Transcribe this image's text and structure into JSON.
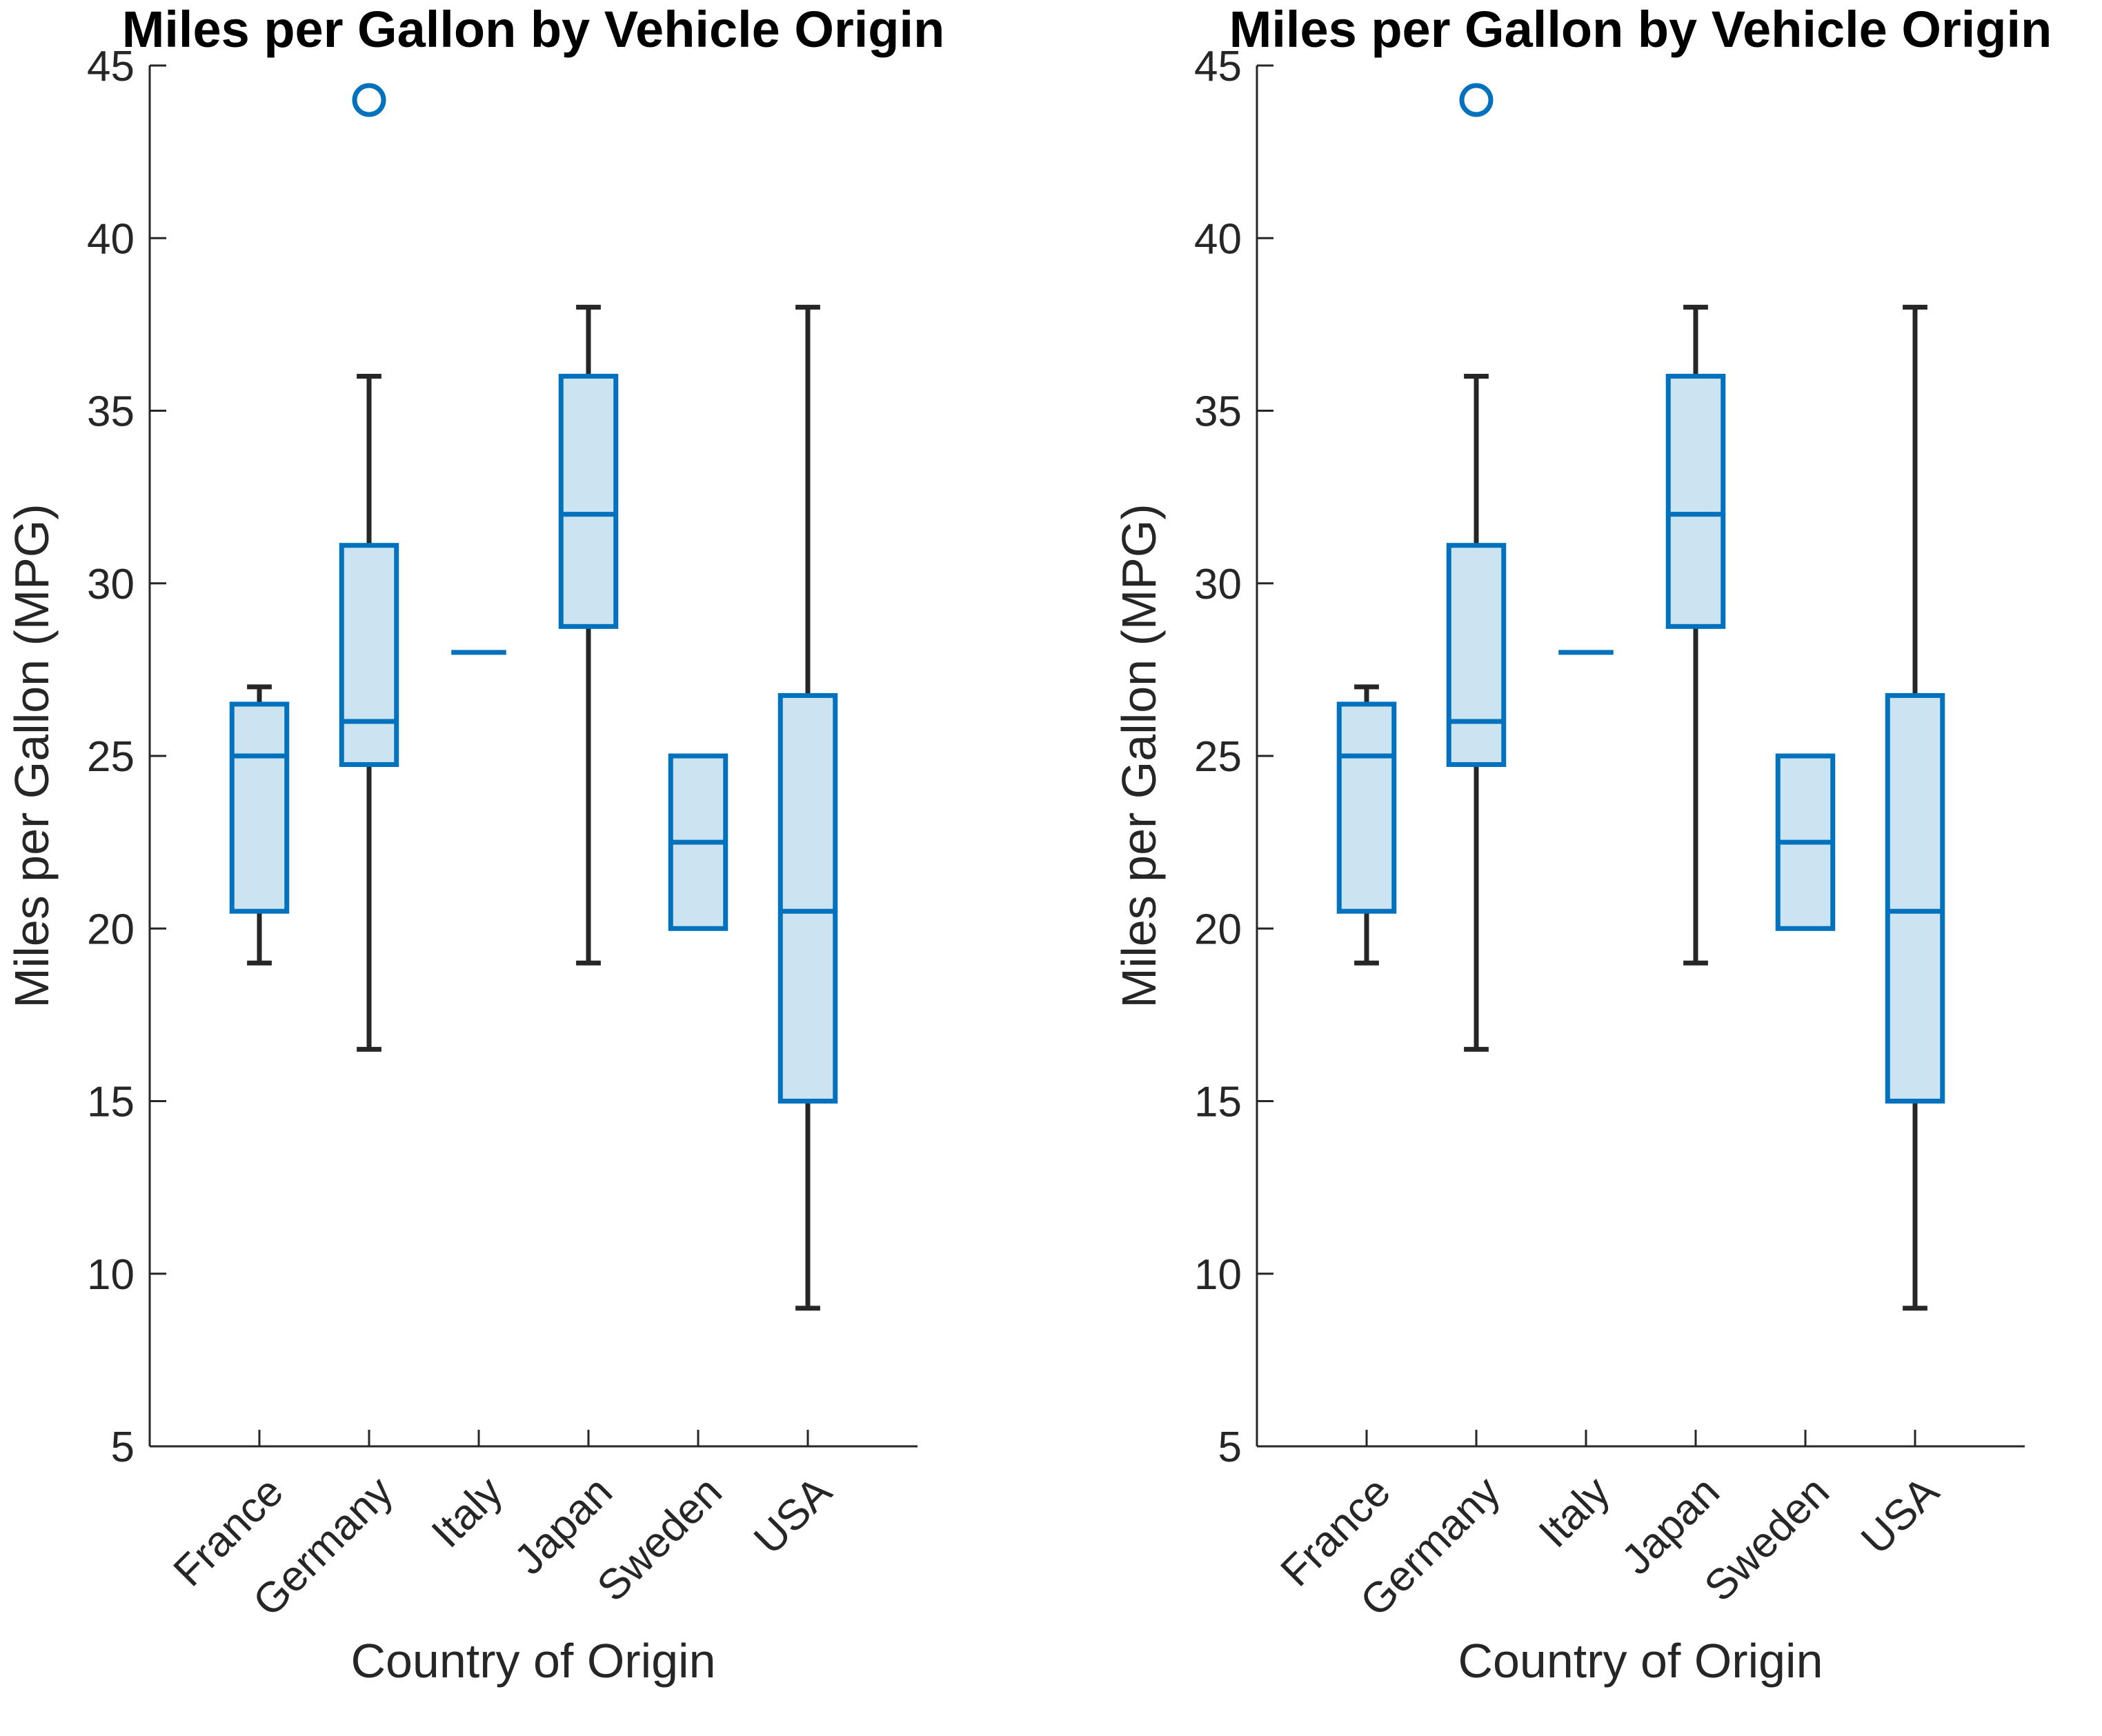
{
  "colors": {
    "box_stroke": "#0072BD",
    "box_fill": "#CCE3F1",
    "whisker": "#262626",
    "axis": "#262626",
    "outlier": "#0072BD"
  },
  "chart_data": [
    {
      "type": "boxplot",
      "title": "Miles per Gallon by Vehicle Origin",
      "xlabel": "Country of Origin",
      "ylabel": "Miles per Gallon (MPG)",
      "ylim": [
        5,
        45
      ],
      "yticks": [
        "5",
        "10",
        "15",
        "20",
        "25",
        "30",
        "35",
        "40",
        "45"
      ],
      "grid": false,
      "categories": [
        "France",
        "Germany",
        "Italy",
        "Japan",
        "Sweden",
        "USA"
      ],
      "boxes": [
        {
          "category": "France",
          "whisker_low": 19,
          "q1": 20.5,
          "median": 25,
          "q3": 26.5,
          "whisker_high": 27,
          "outliers": []
        },
        {
          "category": "Germany",
          "whisker_low": 16.5,
          "q1": 24.75,
          "median": 26,
          "q3": 31.1,
          "whisker_high": 36,
          "outliers": [
            44
          ]
        },
        {
          "category": "Italy",
          "whisker_low": 28,
          "q1": 28,
          "median": 28,
          "q3": 28,
          "whisker_high": 28,
          "outliers": []
        },
        {
          "category": "Japan",
          "whisker_low": 19,
          "q1": 28.75,
          "median": 32,
          "q3": 36,
          "whisker_high": 38,
          "outliers": []
        },
        {
          "category": "Sweden",
          "whisker_low": 20,
          "q1": 20,
          "median": 22.5,
          "q3": 25,
          "whisker_high": 25,
          "outliers": []
        },
        {
          "category": "USA",
          "whisker_low": 9,
          "q1": 15,
          "median": 20.5,
          "q3": 26.75,
          "whisker_high": 38,
          "outliers": []
        }
      ]
    },
    {
      "type": "boxplot",
      "title": "Miles per Gallon by Vehicle Origin",
      "xlabel": "Country of Origin",
      "ylabel": "Miles per Gallon (MPG)",
      "ylim": [
        5,
        45
      ],
      "yticks": [
        "5",
        "10",
        "15",
        "20",
        "25",
        "30",
        "35",
        "40",
        "45"
      ],
      "grid": false,
      "categories": [
        "France",
        "Germany",
        "Italy",
        "Japan",
        "Sweden",
        "USA"
      ],
      "boxes": [
        {
          "category": "France",
          "whisker_low": 19,
          "q1": 20.5,
          "median": 25,
          "q3": 26.5,
          "whisker_high": 27,
          "outliers": []
        },
        {
          "category": "Germany",
          "whisker_low": 16.5,
          "q1": 24.75,
          "median": 26,
          "q3": 31.1,
          "whisker_high": 36,
          "outliers": [
            44
          ]
        },
        {
          "category": "Italy",
          "whisker_low": 28,
          "q1": 28,
          "median": 28,
          "q3": 28,
          "whisker_high": 28,
          "outliers": []
        },
        {
          "category": "Japan",
          "whisker_low": 19,
          "q1": 28.75,
          "median": 32,
          "q3": 36,
          "whisker_high": 38,
          "outliers": []
        },
        {
          "category": "Sweden",
          "whisker_low": 20,
          "q1": 20,
          "median": 22.5,
          "q3": 25,
          "whisker_high": 25,
          "outliers": []
        },
        {
          "category": "USA",
          "whisker_low": 9,
          "q1": 15,
          "median": 20.5,
          "q3": 26.75,
          "whisker_high": 38,
          "outliers": []
        }
      ]
    }
  ]
}
